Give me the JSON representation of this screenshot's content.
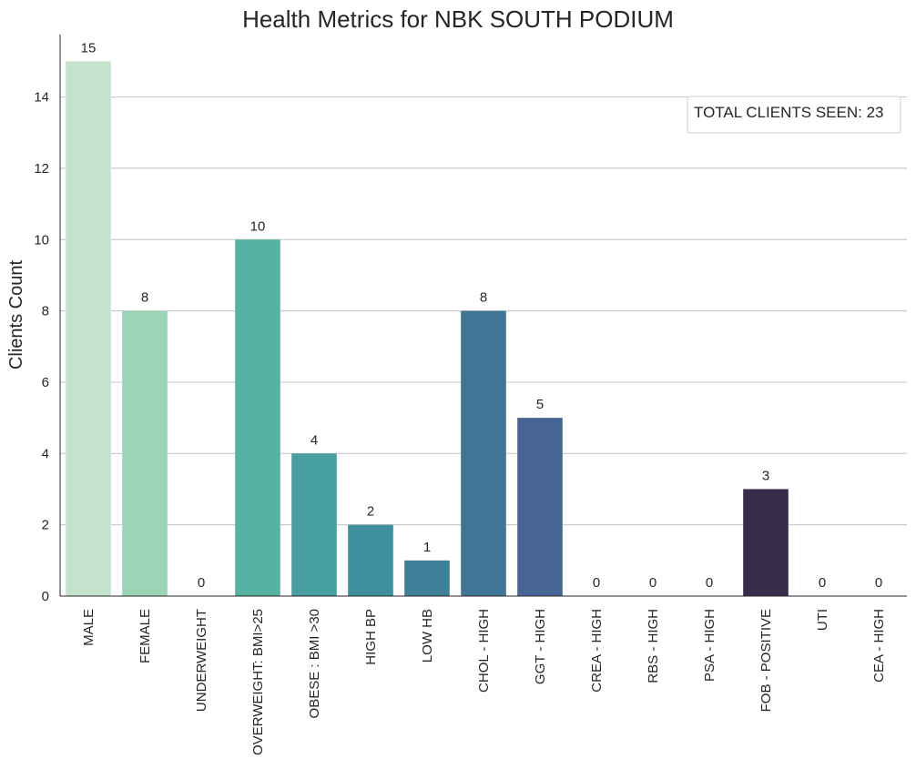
{
  "chart_data": {
    "type": "bar",
    "title": "Health Metrics for NBK SOUTH PODIUM",
    "xlabel": "",
    "ylabel": "Clients Count",
    "ylim": [
      0,
      15.75
    ],
    "yticks": [
      0,
      2,
      4,
      6,
      8,
      10,
      12,
      14
    ],
    "grid": "horizontal",
    "legend": {
      "text": "TOTAL CLIENTS SEEN: 23",
      "placement": "upper-right"
    },
    "categories": [
      "MALE",
      "FEMALE",
      "UNDERWEIGHT",
      "OVERWEIGHT: BMI>25",
      "OBESE : BMI >30",
      "HIGH BP",
      "LOW HB",
      "CHOL - HIGH",
      "GGT - HIGH",
      "CREA - HIGH",
      "RBS - HIGH",
      "PSA - HIGH",
      "FOB - POSITIVE",
      "UTI",
      "CEA - HIGH"
    ],
    "values": [
      15,
      8,
      0,
      10,
      4,
      2,
      1,
      8,
      5,
      0,
      0,
      0,
      3,
      0,
      0
    ],
    "colors": [
      "#c3e3cc",
      "#9dd4b5",
      "#78c7aa",
      "#56b2a3",
      "#47a09f",
      "#3f909c",
      "#3d8098",
      "#417596",
      "#466494",
      "#485690",
      "#46468a",
      "#413a77",
      "#372c4a",
      "#2b2033",
      "#1e1626"
    ]
  }
}
